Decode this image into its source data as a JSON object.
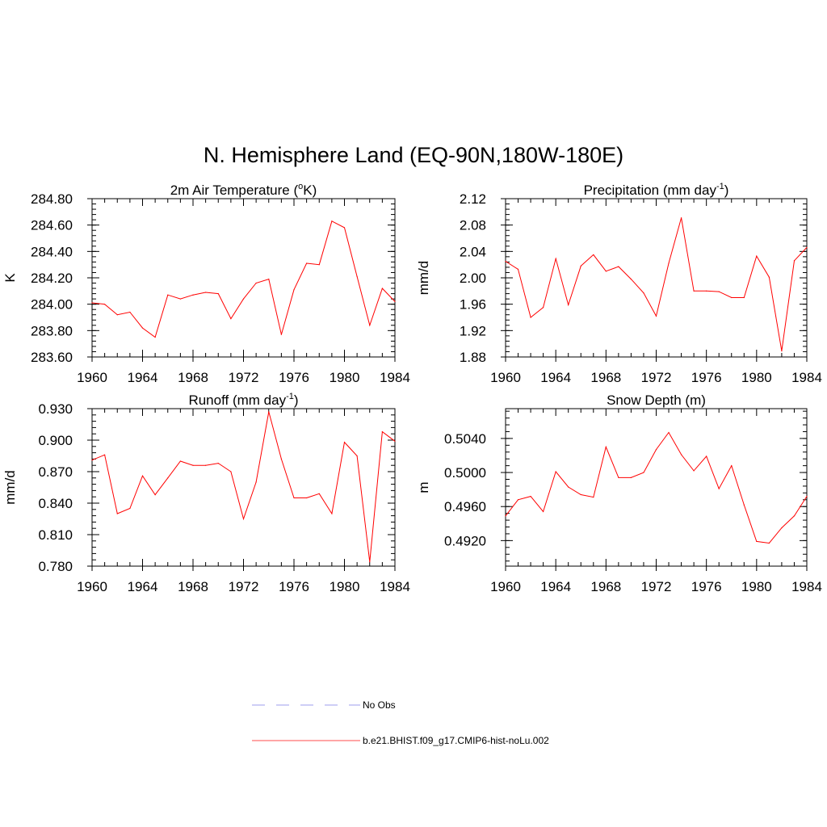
{
  "figure": {
    "title": "N. Hemisphere Land (EQ-90N,180W-180E)"
  },
  "chart_data": [
    {
      "type": "line",
      "title": "2m Air Temperature (",
      "title_sup": "o",
      "title_suffix": "K)",
      "ylabel": "K",
      "xlabel": "",
      "xlim": [
        1960,
        1984
      ],
      "ylim": [
        283.6,
        284.8
      ],
      "xticks": [
        "1960",
        "1964",
        "1968",
        "1972",
        "1976",
        "1980",
        "1984"
      ],
      "yticks": [
        "283.60",
        "283.80",
        "284.00",
        "284.20",
        "284.40",
        "284.60",
        "284.80"
      ],
      "x": [
        1960,
        1961,
        1962,
        1963,
        1964,
        1965,
        1966,
        1967,
        1968,
        1969,
        1970,
        1971,
        1972,
        1973,
        1974,
        1975,
        1976,
        1977,
        1978,
        1979,
        1980,
        1981,
        1982,
        1983,
        1984
      ],
      "series": [
        {
          "color": "#ff0000",
          "values": [
            284.01,
            284.0,
            283.92,
            283.94,
            283.82,
            283.75,
            284.07,
            284.04,
            284.07,
            284.09,
            284.08,
            283.89,
            284.04,
            284.16,
            284.19,
            283.77,
            284.11,
            284.31,
            284.3,
            284.63,
            284.58,
            284.21,
            283.84,
            284.12,
            284.02
          ]
        }
      ]
    },
    {
      "type": "line",
      "title": "Precipitation (mm day",
      "title_sup": "-1",
      "title_suffix": ")",
      "ylabel": "mm/d",
      "xlabel": "",
      "xlim": [
        1960,
        1984
      ],
      "ylim": [
        1.88,
        2.12
      ],
      "xticks": [
        "1960",
        "1964",
        "1968",
        "1972",
        "1976",
        "1980",
        "1984"
      ],
      "yticks": [
        "1.88",
        "1.92",
        "1.96",
        "2.00",
        "2.04",
        "2.08",
        "2.12"
      ],
      "x": [
        1960,
        1961,
        1962,
        1963,
        1964,
        1965,
        1966,
        1967,
        1968,
        1969,
        1970,
        1971,
        1972,
        1973,
        1974,
        1975,
        1976,
        1977,
        1978,
        1979,
        1980,
        1981,
        1982,
        1983,
        1984
      ],
      "series": [
        {
          "color": "#ff0000",
          "values": [
            2.025,
            2.013,
            1.94,
            1.955,
            2.029,
            1.959,
            2.018,
            2.035,
            2.01,
            2.017,
            1.998,
            1.977,
            1.942,
            2.022,
            2.091,
            1.98,
            1.98,
            1.979,
            1.97,
            1.97,
            2.033,
            2.001,
            1.889,
            2.026,
            2.046
          ]
        }
      ]
    },
    {
      "type": "line",
      "title": "Runoff (mm day",
      "title_sup": "-1",
      "title_suffix": ")",
      "ylabel": "mm/d",
      "xlabel": "",
      "xlim": [
        1960,
        1984
      ],
      "ylim": [
        0.78,
        0.93
      ],
      "xticks": [
        "1960",
        "1964",
        "1968",
        "1972",
        "1976",
        "1980",
        "1984"
      ],
      "yticks": [
        "0.780",
        "0.810",
        "0.840",
        "0.870",
        "0.900",
        "0.930"
      ],
      "x": [
        1960,
        1961,
        1962,
        1963,
        1964,
        1965,
        1966,
        1967,
        1968,
        1969,
        1970,
        1971,
        1972,
        1973,
        1974,
        1975,
        1976,
        1977,
        1978,
        1979,
        1980,
        1981,
        1982,
        1983,
        1984
      ],
      "series": [
        {
          "color": "#ff0000",
          "values": [
            0.881,
            0.886,
            0.83,
            0.835,
            0.866,
            0.848,
            0.864,
            0.88,
            0.876,
            0.876,
            0.878,
            0.87,
            0.825,
            0.86,
            0.927,
            0.882,
            0.845,
            0.845,
            0.849,
            0.83,
            0.898,
            0.885,
            0.784,
            0.908,
            0.899
          ]
        }
      ]
    },
    {
      "type": "line",
      "title": "Snow Depth (m)",
      "title_sup": "",
      "title_suffix": "",
      "ylabel": "m",
      "xlabel": "",
      "xlim": [
        1960,
        1984
      ],
      "ylim": [
        0.489,
        0.5075
      ],
      "xticks": [
        "1960",
        "1964",
        "1968",
        "1972",
        "1976",
        "1980",
        "1984"
      ],
      "yticks": [
        "0.4920",
        "0.4960",
        "0.5000",
        "0.5040"
      ],
      "ytick_values": [
        0.492,
        0.496,
        0.5,
        0.504
      ],
      "x": [
        1960,
        1961,
        1962,
        1963,
        1964,
        1965,
        1966,
        1967,
        1968,
        1969,
        1970,
        1971,
        1972,
        1973,
        1974,
        1975,
        1976,
        1977,
        1978,
        1979,
        1980,
        1981,
        1982,
        1983,
        1984
      ],
      "series": [
        {
          "color": "#ff0000",
          "values": [
            0.4949,
            0.4968,
            0.4972,
            0.4954,
            0.5001,
            0.4983,
            0.4974,
            0.4971,
            0.503,
            0.4994,
            0.4994,
            0.5,
            0.5027,
            0.5047,
            0.5021,
            0.5002,
            0.5019,
            0.4981,
            0.5008,
            0.4962,
            0.4919,
            0.4917,
            0.4935,
            0.4949,
            0.4972
          ]
        }
      ]
    }
  ],
  "legend": {
    "items": [
      {
        "label": "No Obs",
        "color": "#b0b0f0",
        "style": "dashed"
      },
      {
        "label": "b.e21.BHIST.f09_g17.CMIP6-hist-noLu.002",
        "color": "#ff7070",
        "style": "solid"
      }
    ]
  }
}
